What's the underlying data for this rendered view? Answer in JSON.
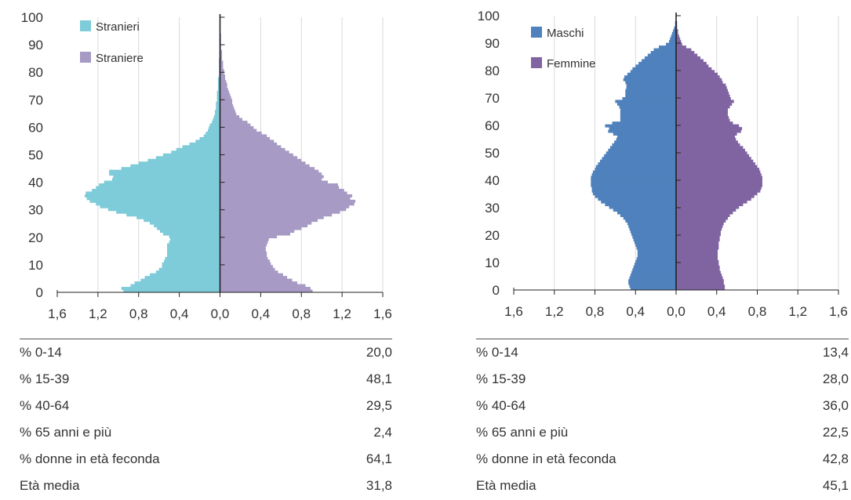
{
  "chart_data": [
    {
      "type": "bar",
      "orientation": "horizontal",
      "subtype": "population-pyramid",
      "age_step": 1,
      "age_range": [
        0,
        100
      ],
      "xlim": [
        -1.6,
        1.6
      ],
      "x_tick_labels": [
        "1,6",
        "1,2",
        "0,8",
        "0,4",
        "0,0",
        "0,4",
        "0,8",
        "1,2",
        "1,6"
      ],
      "y_tick_labels": [
        "0",
        "10",
        "20",
        "30",
        "40",
        "50",
        "60",
        "70",
        "80",
        "90",
        "100"
      ],
      "legend_position": "top-left",
      "grid": "vertical",
      "series": [
        {
          "name": "Stranieri",
          "side": "left",
          "color": "#7ecbd9",
          "values": [
            0.95,
            0.97,
            0.88,
            0.84,
            0.78,
            0.74,
            0.69,
            0.63,
            0.6,
            0.57,
            0.57,
            0.55,
            0.54,
            0.52,
            0.52,
            0.52,
            0.52,
            0.52,
            0.5,
            0.49,
            0.5,
            0.56,
            0.59,
            0.62,
            0.65,
            0.69,
            0.75,
            0.82,
            0.92,
            1.02,
            1.1,
            1.18,
            1.22,
            1.28,
            1.31,
            1.33,
            1.32,
            1.26,
            1.22,
            1.19,
            1.14,
            1.06,
            1.05,
            1.09,
            1.09,
            0.97,
            0.88,
            0.8,
            0.71,
            0.63,
            0.56,
            0.48,
            0.43,
            0.37,
            0.3,
            0.24,
            0.2,
            0.16,
            0.14,
            0.12,
            0.11,
            0.1,
            0.08,
            0.07,
            0.06,
            0.05,
            0.05,
            0.04,
            0.04,
            0.04,
            0.03,
            0.03,
            0.03,
            0.03,
            0.02,
            0.02,
            0.02,
            0.02,
            0.02,
            0.01,
            0.01,
            0.01,
            0.01,
            0.01,
            0.01,
            0.01,
            0.0,
            0.0,
            0.0,
            0.0,
            0.0,
            0.0,
            0.0,
            0.0,
            0.0,
            0.0,
            0.0,
            0.0,
            0.0,
            0.0,
            0.0
          ]
        },
        {
          "name": "Straniere",
          "side": "right",
          "color": "#a79ac4",
          "values": [
            0.91,
            0.89,
            0.84,
            0.76,
            0.71,
            0.66,
            0.62,
            0.57,
            0.54,
            0.52,
            0.5,
            0.49,
            0.47,
            0.46,
            0.46,
            0.45,
            0.45,
            0.46,
            0.47,
            0.48,
            0.56,
            0.69,
            0.73,
            0.8,
            0.86,
            0.9,
            0.96,
            1.02,
            1.1,
            1.18,
            1.24,
            1.27,
            1.32,
            1.33,
            1.28,
            1.3,
            1.25,
            1.22,
            1.17,
            1.16,
            1.06,
            1.0,
            1.02,
            1.0,
            0.97,
            0.93,
            0.88,
            0.84,
            0.8,
            0.76,
            0.72,
            0.68,
            0.64,
            0.6,
            0.56,
            0.53,
            0.49,
            0.46,
            0.41,
            0.36,
            0.33,
            0.3,
            0.27,
            0.22,
            0.19,
            0.16,
            0.15,
            0.14,
            0.13,
            0.12,
            0.12,
            0.11,
            0.1,
            0.09,
            0.08,
            0.07,
            0.07,
            0.06,
            0.05,
            0.05,
            0.04,
            0.04,
            0.03,
            0.03,
            0.03,
            0.02,
            0.02,
            0.02,
            0.02,
            0.01,
            0.01,
            0.01,
            0.01,
            0.01,
            0.01,
            0.0,
            0.0,
            0.0,
            0.0,
            0.0,
            0.0
          ]
        }
      ]
    },
    {
      "type": "bar",
      "orientation": "horizontal",
      "subtype": "population-pyramid",
      "age_step": 1,
      "age_range": [
        0,
        100
      ],
      "xlim": [
        -1.6,
        1.6
      ],
      "x_tick_labels": [
        "1,6",
        "1,2",
        "0,8",
        "0,4",
        "0,0",
        "0,4",
        "0,8",
        "1,2",
        "1,6"
      ],
      "y_tick_labels": [
        "0",
        "10",
        "20",
        "30",
        "40",
        "50",
        "60",
        "70",
        "80",
        "90",
        "100"
      ],
      "legend_position": "top-left",
      "grid": "vertical",
      "series": [
        {
          "name": "Maschi",
          "side": "left",
          "color": "#4f81bd",
          "values": [
            0.45,
            0.46,
            0.47,
            0.47,
            0.46,
            0.45,
            0.44,
            0.43,
            0.42,
            0.41,
            0.4,
            0.39,
            0.38,
            0.38,
            0.38,
            0.39,
            0.4,
            0.41,
            0.42,
            0.43,
            0.44,
            0.45,
            0.46,
            0.47,
            0.48,
            0.5,
            0.52,
            0.55,
            0.58,
            0.62,
            0.66,
            0.7,
            0.74,
            0.77,
            0.8,
            0.82,
            0.83,
            0.83,
            0.84,
            0.84,
            0.84,
            0.84,
            0.83,
            0.82,
            0.8,
            0.79,
            0.77,
            0.75,
            0.73,
            0.71,
            0.69,
            0.67,
            0.65,
            0.63,
            0.61,
            0.59,
            0.58,
            0.62,
            0.67,
            0.66,
            0.7,
            0.63,
            0.55,
            0.55,
            0.55,
            0.55,
            0.55,
            0.56,
            0.58,
            0.6,
            0.53,
            0.5,
            0.5,
            0.5,
            0.49,
            0.49,
            0.5,
            0.52,
            0.51,
            0.48,
            0.45,
            0.43,
            0.4,
            0.37,
            0.34,
            0.31,
            0.28,
            0.25,
            0.22,
            0.17,
            0.1,
            0.07,
            0.06,
            0.05,
            0.04,
            0.03,
            0.02,
            0.01,
            0.01,
            0.0,
            0.0
          ]
        },
        {
          "name": "Femmine",
          "side": "right",
          "color": "#8064a2",
          "values": [
            0.48,
            0.48,
            0.47,
            0.47,
            0.46,
            0.45,
            0.44,
            0.43,
            0.43,
            0.42,
            0.42,
            0.41,
            0.41,
            0.41,
            0.41,
            0.42,
            0.42,
            0.42,
            0.43,
            0.43,
            0.44,
            0.44,
            0.45,
            0.46,
            0.47,
            0.49,
            0.51,
            0.53,
            0.56,
            0.59,
            0.62,
            0.66,
            0.7,
            0.74,
            0.77,
            0.8,
            0.83,
            0.84,
            0.85,
            0.85,
            0.85,
            0.85,
            0.84,
            0.83,
            0.82,
            0.8,
            0.78,
            0.76,
            0.74,
            0.72,
            0.7,
            0.68,
            0.66,
            0.63,
            0.61,
            0.59,
            0.58,
            0.6,
            0.64,
            0.65,
            0.62,
            0.56,
            0.53,
            0.52,
            0.51,
            0.51,
            0.51,
            0.53,
            0.55,
            0.57,
            0.54,
            0.53,
            0.52,
            0.51,
            0.5,
            0.49,
            0.46,
            0.45,
            0.43,
            0.41,
            0.38,
            0.35,
            0.32,
            0.3,
            0.27,
            0.24,
            0.21,
            0.18,
            0.15,
            0.1,
            0.06,
            0.05,
            0.04,
            0.03,
            0.02,
            0.02,
            0.01,
            0.01,
            0.01,
            0.0,
            0.0
          ]
        }
      ]
    }
  ],
  "tables": [
    {
      "rows": [
        {
          "label": "% 0-14",
          "value": "20,0"
        },
        {
          "label": "% 15-39",
          "value": "48,1"
        },
        {
          "label": "% 40-64",
          "value": "29,5"
        },
        {
          "label": "% 65 anni e più",
          "value": "2,4"
        },
        {
          "label": "% donne in età feconda",
          "value": "64,1"
        },
        {
          "label": "Età media",
          "value": "31,8"
        }
      ]
    },
    {
      "rows": [
        {
          "label": "% 0-14",
          "value": "13,4"
        },
        {
          "label": "% 15-39",
          "value": "28,0"
        },
        {
          "label": "% 40-64",
          "value": "36,0"
        },
        {
          "label": "% 65 anni e più",
          "value": "22,5"
        },
        {
          "label": "% donne in età feconda",
          "value": "42,8"
        },
        {
          "label": "Età media",
          "value": "45,1"
        }
      ]
    }
  ]
}
